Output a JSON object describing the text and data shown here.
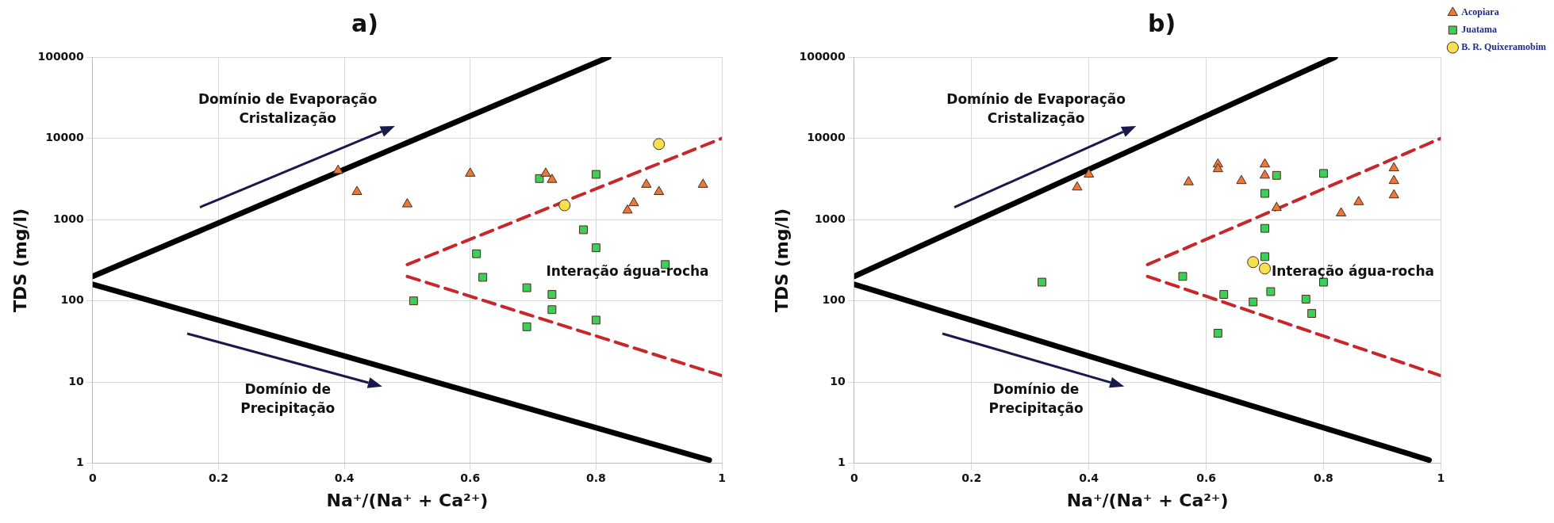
{
  "chart_data": [
    {
      "type": "scatter",
      "title": "a)",
      "xlabel": "Na⁺/(Na⁺ + Ca²⁺)",
      "ylabel": "TDS (mg/l)",
      "xlim": [
        0,
        1
      ],
      "xticks": [
        0,
        0.2,
        0.4,
        0.6,
        0.8,
        1
      ],
      "ylim": [
        1,
        100000
      ],
      "yticks": [
        1,
        10,
        100,
        1000,
        10000,
        100000
      ],
      "log": "y",
      "grid": true,
      "annotations": [
        "Domínio de Evaporação\nCristalização",
        "Domínio de\nPrecipitação",
        "Interação água-rocha"
      ],
      "series": [
        {
          "type": "line",
          "color": "#000000",
          "marker": "none",
          "line_style": "solid",
          "x": [
            0,
            0.82
          ],
          "values": [
            200,
            100000
          ]
        },
        {
          "type": "line",
          "color": "#000000",
          "marker": "none",
          "line_style": "solid",
          "x": [
            0,
            0.98
          ],
          "values": [
            160,
            1.1
          ]
        },
        {
          "type": "line",
          "color": "#c8262a",
          "marker": "none",
          "line_style": "dashed",
          "x": [
            0.5,
            1
          ],
          "values": [
            280,
            10000
          ]
        },
        {
          "type": "line",
          "color": "#c8262a",
          "marker": "none",
          "line_style": "dashed",
          "x": [
            0.5,
            1
          ],
          "values": [
            200,
            12
          ]
        },
        {
          "color": "#e8793a",
          "marker": "triangle",
          "x": [
            0.39,
            0.42,
            0.5,
            0.6,
            0.72,
            0.73,
            0.85,
            0.86,
            0.88,
            0.9,
            0.97
          ],
          "values": [
            4000,
            2200,
            1550,
            3700,
            3700,
            3100,
            1300,
            1600,
            2700,
            2200,
            2700
          ]
        },
        {
          "color": "#3ccf5a",
          "marker": "square",
          "x": [
            0.51,
            0.61,
            0.62,
            0.69,
            0.69,
            0.71,
            0.73,
            0.73,
            0.78,
            0.8,
            0.8,
            0.8,
            0.91
          ],
          "values": [
            100,
            380,
            195,
            145,
            48,
            3200,
            120,
            78,
            750,
            450,
            3600,
            58,
            280
          ]
        },
        {
          "color": "#f5e050",
          "marker": "circle",
          "x": [
            0.75,
            0.9
          ],
          "values": [
            1500,
            8500
          ]
        }
      ]
    },
    {
      "type": "scatter",
      "title": "b)",
      "xlabel": "Na⁺/(Na⁺ + Ca²⁺)",
      "ylabel": "TDS (mg/l)",
      "xlim": [
        0,
        1
      ],
      "xticks": [
        0,
        0.2,
        0.4,
        0.6,
        0.8,
        1
      ],
      "ylim": [
        1,
        100000
      ],
      "yticks": [
        1,
        10,
        100,
        1000,
        10000,
        100000
      ],
      "log": "y",
      "grid": true,
      "legend": "top right",
      "annotations": [
        "Domínio de Evaporação\nCristalização",
        "Domínio de\nPrecipitação",
        "Interação água-rocha"
      ],
      "series": [
        {
          "type": "line",
          "color": "#000000",
          "marker": "none",
          "line_style": "solid",
          "x": [
            0,
            0.82
          ],
          "values": [
            200,
            100000
          ]
        },
        {
          "type": "line",
          "color": "#000000",
          "marker": "none",
          "line_style": "solid",
          "x": [
            0,
            0.98
          ],
          "values": [
            160,
            1.1
          ]
        },
        {
          "type": "line",
          "color": "#c8262a",
          "marker": "none",
          "line_style": "dashed",
          "x": [
            0.5,
            1
          ],
          "values": [
            280,
            10000
          ]
        },
        {
          "type": "line",
          "color": "#c8262a",
          "marker": "none",
          "line_style": "dashed",
          "x": [
            0.5,
            1
          ],
          "values": [
            200,
            12
          ]
        },
        {
          "name": "Acopiara",
          "color": "#e8793a",
          "marker": "triangle",
          "x": [
            0.38,
            0.4,
            0.57,
            0.62,
            0.62,
            0.66,
            0.7,
            0.7,
            0.72,
            0.83,
            0.86,
            0.92,
            0.92,
            0.92
          ],
          "values": [
            2500,
            3600,
            2900,
            4800,
            4200,
            3000,
            4800,
            3500,
            1400,
            1200,
            1650,
            4300,
            3000,
            2000
          ]
        },
        {
          "name": "Juatama",
          "color": "#3ccf5a",
          "marker": "square",
          "x": [
            0.32,
            0.56,
            0.62,
            0.63,
            0.68,
            0.7,
            0.7,
            0.7,
            0.71,
            0.72,
            0.77,
            0.78,
            0.8,
            0.8
          ],
          "values": [
            170,
            200,
            40,
            120,
            97,
            2100,
            780,
            350,
            130,
            3500,
            105,
            70,
            3700,
            170
          ]
        },
        {
          "name": "B. R. Quixeramobim",
          "color": "#f5e050",
          "marker": "circle",
          "x": [
            0.68,
            0.7
          ],
          "values": [
            300,
            250
          ]
        }
      ]
    }
  ]
}
